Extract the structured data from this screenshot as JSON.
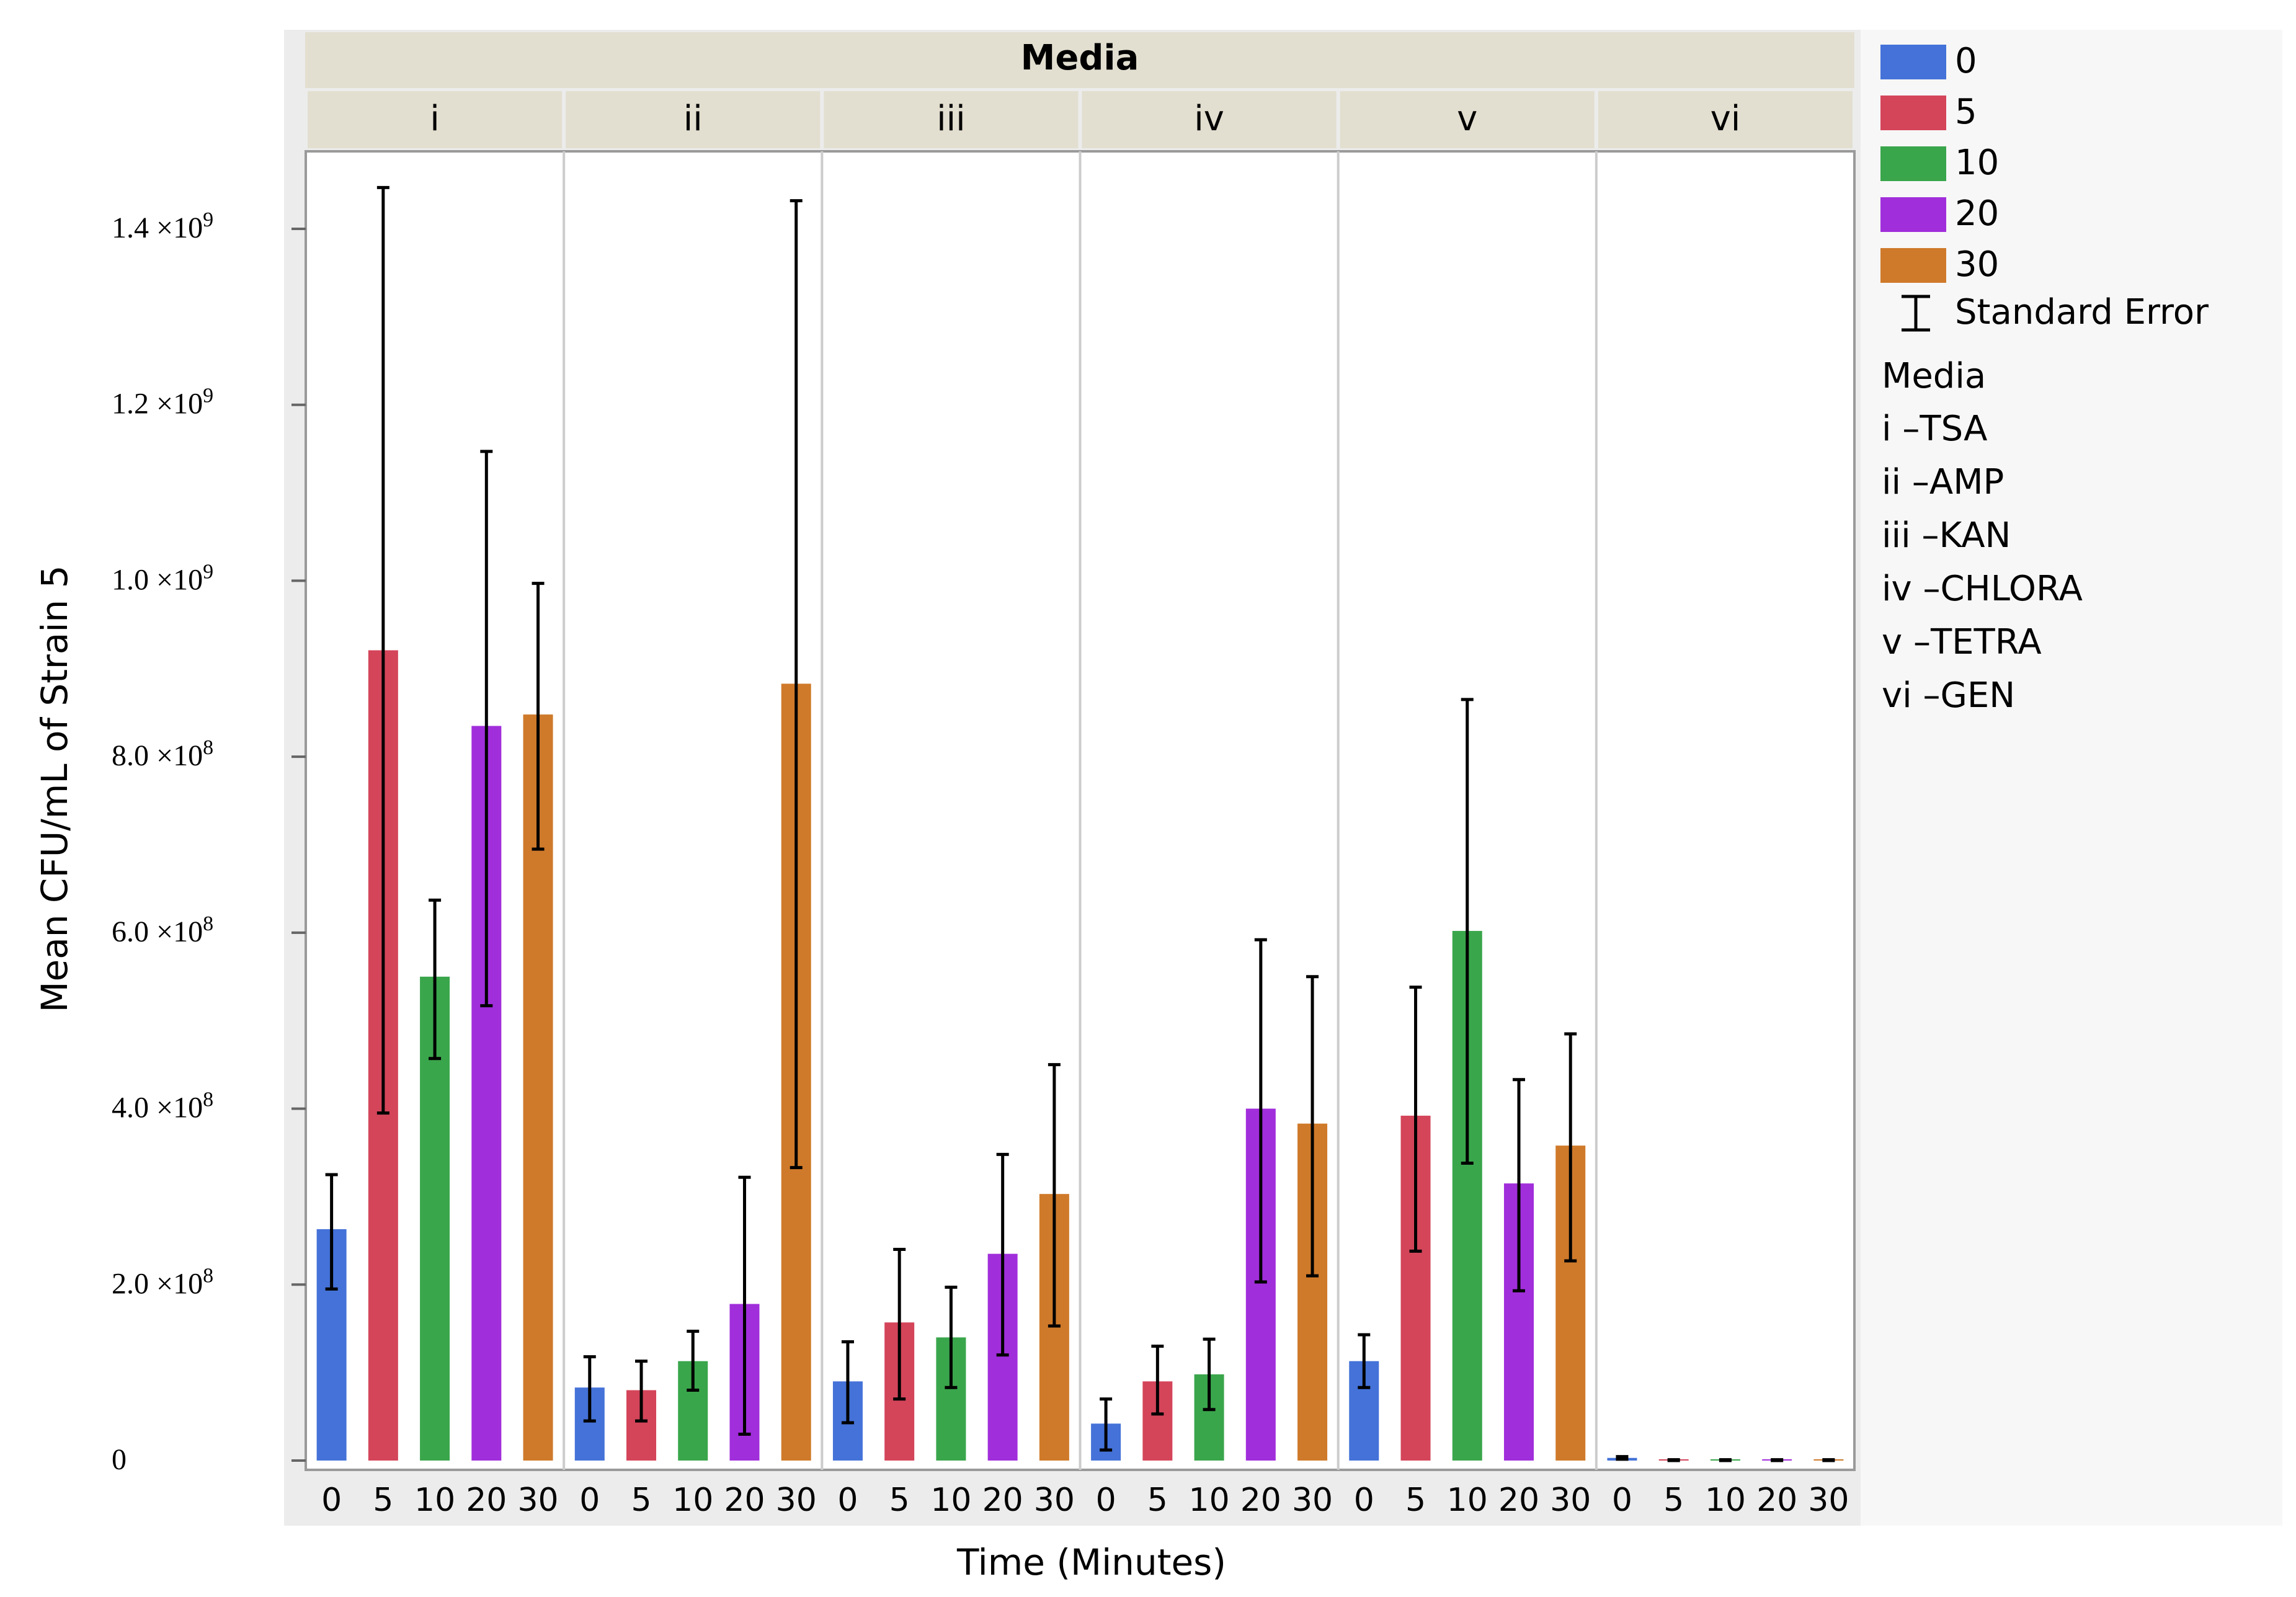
{
  "chart_data": {
    "type": "bar",
    "title": "Media",
    "xlabel": "Time (Minutes)",
    "ylabel": "Mean CFU/mL of Strain 5",
    "ylim": [
      0,
      1500000000
    ],
    "y_ticks": [
      {
        "value": 0,
        "mantissa": "0",
        "exponent": ""
      },
      {
        "value": 200000000,
        "mantissa": "2.0 ×10",
        "exponent": "8"
      },
      {
        "value": 400000000,
        "mantissa": "4.0 ×10",
        "exponent": "8"
      },
      {
        "value": 600000000,
        "mantissa": "6.0 ×10",
        "exponent": "8"
      },
      {
        "value": 800000000,
        "mantissa": "8.0 ×10",
        "exponent": "8"
      },
      {
        "value": 1000000000,
        "mantissa": "1.0 ×10",
        "exponent": "9"
      },
      {
        "value": 1200000000,
        "mantissa": "1.2 ×10",
        "exponent": "9"
      },
      {
        "value": 1400000000,
        "mantissa": "1.4 ×10",
        "exponent": "9"
      }
    ],
    "categories": [
      "0",
      "5",
      "10",
      "20",
      "30"
    ],
    "panels": [
      {
        "label": "i",
        "values": [
          263000000,
          921000000,
          550000000,
          835000000,
          848000000
        ],
        "err_low": [
          195000000,
          395000000,
          457000000,
          517000000,
          695000000
        ],
        "err_high": [
          325000000,
          1447000000,
          637000000,
          1147000000,
          997000000
        ]
      },
      {
        "label": "ii",
        "values": [
          83000000,
          80000000,
          113000000,
          178000000,
          883000000
        ],
        "err_low": [
          45000000,
          45000000,
          80000000,
          30000000,
          333000000
        ],
        "err_high": [
          118000000,
          113000000,
          147000000,
          322000000,
          1432000000
        ]
      },
      {
        "label": "iii",
        "values": [
          90000000,
          157000000,
          140000000,
          235000000,
          303000000
        ],
        "err_low": [
          43000000,
          70000000,
          83000000,
          120000000,
          153000000
        ],
        "err_high": [
          135000000,
          240000000,
          197000000,
          348000000,
          450000000
        ]
      },
      {
        "label": "iv",
        "values": [
          42000000,
          90000000,
          98000000,
          400000000,
          383000000
        ],
        "err_low": [
          12000000,
          53000000,
          58000000,
          203000000,
          210000000
        ],
        "err_high": [
          70000000,
          130000000,
          138000000,
          592000000,
          550000000
        ]
      },
      {
        "label": "v",
        "values": [
          113000000,
          392000000,
          602000000,
          315000000,
          358000000
        ],
        "err_low": [
          83000000,
          238000000,
          338000000,
          193000000,
          227000000
        ],
        "err_high": [
          143000000,
          538000000,
          865000000,
          433000000,
          485000000
        ]
      },
      {
        "label": "vi",
        "values": [
          3000000,
          500000,
          500000,
          500000,
          500000
        ],
        "err_low": [
          1500000,
          0,
          0,
          0,
          0
        ],
        "err_high": [
          4500000,
          1000000,
          1000000,
          1000000,
          1000000
        ]
      }
    ],
    "colors": {
      "0": "#4472d8",
      "5": "#d4455a",
      "10": "#3aa64c",
      "20": "#a12edb",
      "30": "#cf7a2a"
    },
    "legend": {
      "position": "right",
      "entries": [
        "0",
        "5",
        "10",
        "20",
        "30"
      ],
      "error_label": "Standard Error",
      "media_title": "Media",
      "media_lines": [
        "i –TSA",
        "ii –AMP",
        "iii –KAN",
        "iv –CHLORA",
        "v –TETRA",
        "vi –GEN"
      ]
    },
    "grid": false
  }
}
